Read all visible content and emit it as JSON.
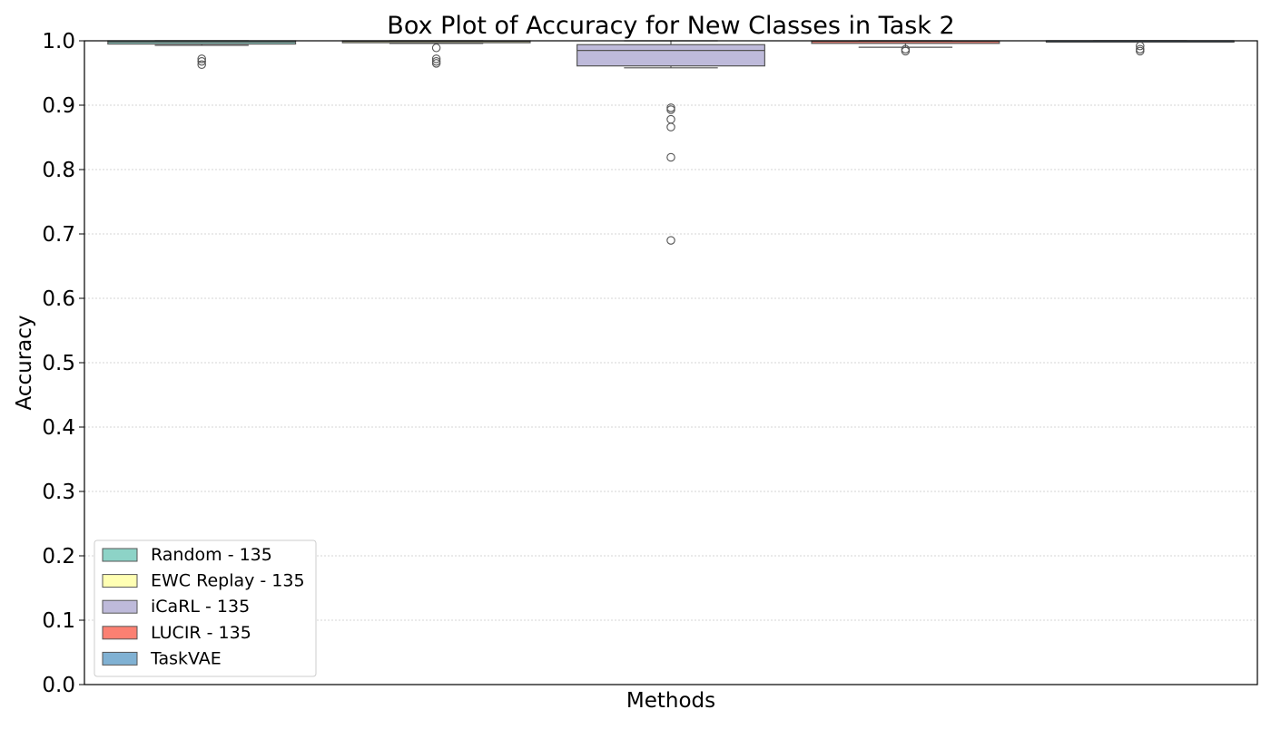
{
  "chart_data": {
    "type": "box",
    "title": "Box Plot of Accuracy for New Classes in Task 2",
    "xlabel": "Methods",
    "ylabel": "Accuracy",
    "ylim": [
      0.0,
      1.0
    ],
    "yticks": [
      "0.0",
      "0.1",
      "0.2",
      "0.3",
      "0.4",
      "0.5",
      "0.6",
      "0.7",
      "0.8",
      "0.9",
      "1.0"
    ],
    "grid": "horizontal-dotted",
    "legend_position": "lower-left",
    "series": [
      {
        "name": "Random - 135",
        "color": "#8dd3c7",
        "whisker_low": 0.993,
        "q1": 0.995,
        "median": 0.998,
        "q3": 1.0,
        "whisker_high": 1.0,
        "outliers": [
          0.972,
          0.968,
          0.963
        ]
      },
      {
        "name": "EWC Replay - 135",
        "color": "#ffffb3",
        "whisker_low": 0.996,
        "q1": 0.997,
        "median": 0.999,
        "q3": 1.0,
        "whisker_high": 1.0,
        "outliers": [
          0.989,
          0.972,
          0.968,
          0.965
        ]
      },
      {
        "name": "iCaRL - 135",
        "color": "#bebada",
        "whisker_low": 0.958,
        "q1": 0.961,
        "median": 0.985,
        "q3": 0.994,
        "whisker_high": 1.0,
        "outliers": [
          0.896,
          0.893,
          0.878,
          0.866,
          0.819,
          0.69
        ]
      },
      {
        "name": "LUCIR - 135",
        "color": "#fb8072",
        "whisker_low": 0.99,
        "q1": 0.996,
        "median": 0.999,
        "q3": 1.0,
        "whisker_high": 1.0,
        "outliers": [
          0.987,
          0.984
        ]
      },
      {
        "name": "TaskVAE",
        "color": "#80b1d3",
        "whisker_low": 0.999,
        "q1": 0.9995,
        "median": 1.0,
        "q3": 1.0,
        "whisker_high": 1.0,
        "outliers": [
          0.992,
          0.987,
          0.984
        ]
      }
    ]
  }
}
